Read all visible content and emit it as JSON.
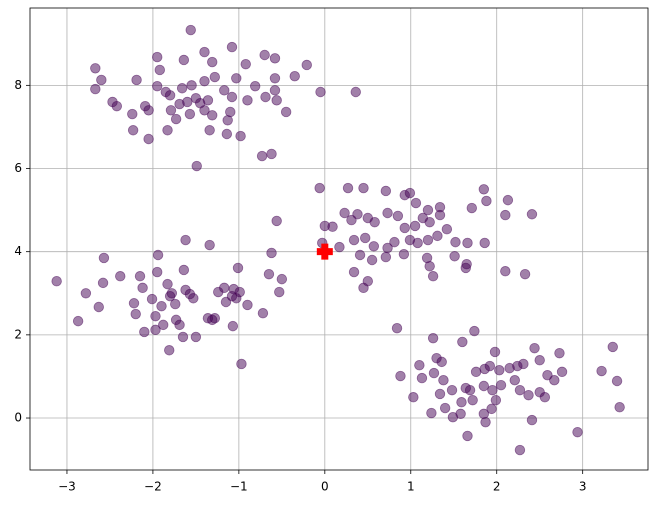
{
  "chart_data": {
    "type": "scatter",
    "xlim": [
      -3.43,
      3.76
    ],
    "ylim": [
      -1.25,
      9.86
    ],
    "xticks": [
      {
        "value": -3,
        "label": "−3"
      },
      {
        "value": -2,
        "label": "−2"
      },
      {
        "value": -1,
        "label": "−1"
      },
      0,
      1,
      2,
      3
    ],
    "yticks": [
      0,
      2,
      4,
      6,
      8
    ],
    "grid": true,
    "series": [
      {
        "color": "#440154",
        "opacity": 0.5,
        "marker": "circle",
        "x": [
          -1.56,
          -2.67,
          -1.95,
          -1.4,
          -1.08,
          -0.7,
          -0.58,
          -0.21,
          -0.35,
          -0.58,
          -0.92,
          -1.31,
          -1.64,
          -1.92,
          -2.19,
          -2.6,
          -2.67,
          -2.47,
          -2.42,
          -2.09,
          -2.05,
          -2.24,
          -1.95,
          -1.85,
          -1.8,
          -1.66,
          -1.55,
          -1.4,
          -1.28,
          -1.03,
          -0.81,
          -0.58,
          -0.69,
          -0.56,
          -0.45,
          -0.9,
          -1.08,
          -1.17,
          -1.36,
          -1.45,
          -1.5,
          -1.6,
          -1.69,
          -1.79,
          -1.83,
          -1.73,
          -1.57,
          -1.4,
          -1.31,
          -1.1,
          -1.13,
          -1.34,
          -1.14,
          -0.98,
          -2.23,
          -2.05,
          -0.73,
          -0.62,
          -1.49,
          -0.05,
          0.36,
          -0.06,
          0.27,
          0.45,
          0.71,
          0.93,
          0.99,
          1.06,
          1.2,
          1.34,
          1.85,
          1.88,
          2.13,
          2.1,
          2.41,
          1.71,
          0,
          0.09,
          0.23,
          0.31,
          0.38,
          0.5,
          0.58,
          0.73,
          0.85,
          0.93,
          1.05,
          1.14,
          1.22,
          1.34,
          1.42,
          1.31,
          1.2,
          1.08,
          0.99,
          0.81,
          0.73,
          0.57,
          0.47,
          0.34,
          0.17,
          -0.03,
          0.41,
          0.55,
          0.71,
          0.92,
          1.19,
          1.22,
          1.26,
          1.65,
          1.64,
          1.52,
          1.66,
          1.86,
          2.1,
          2.33,
          0.34,
          0.5,
          0.45,
          0.84,
          1.51,
          -3.12,
          -2.87,
          -2.78,
          -2.63,
          -2.57,
          -2.58,
          -2.38,
          -2.22,
          -2.2,
          -2.15,
          -2.12,
          -2.01,
          -2.1,
          -1.97,
          -1.97,
          -1.95,
          -1.94,
          -1.9,
          -1.88,
          -1.83,
          -1.8,
          -1.78,
          -1.74,
          -1.73,
          -1.69,
          -1.65,
          -1.81,
          -1.62,
          -1.57,
          -1.64,
          -1.62,
          -1.53,
          -1.5,
          -1.34,
          -1.36,
          -1.31,
          -1.24,
          -1.17,
          -1.15,
          -1.08,
          -1.06,
          -1.03,
          -0.99,
          -1.01,
          -0.9,
          -1.07,
          -0.72,
          -0.65,
          -0.62,
          -0.56,
          -0.53,
          -0.5,
          -0.97,
          -1.28,
          0.88,
          1.1,
          1.26,
          1.3,
          1.36,
          1.13,
          1.27,
          1.38,
          1.34,
          1.48,
          1.49,
          1.24,
          1.58,
          1.59,
          1.64,
          1.6,
          1.74,
          1.76,
          1.86,
          1.92,
          1.98,
          2.03,
          2.05,
          1.95,
          1.99,
          1.94,
          1.85,
          1.87,
          1.66,
          1.72,
          1.69,
          1.85,
          2.15,
          2.24,
          2.31,
          2.5,
          2.44,
          2.21,
          2.27,
          2.37,
          2.5,
          2.56,
          2.59,
          2.67,
          2.73,
          2.76,
          2.41,
          2.27,
          2.94,
          3.22,
          3.35,
          3.4,
          3.43,
          1.03,
          1.4
        ],
        "values": [
          9.33,
          8.41,
          8.68,
          8.8,
          8.92,
          8.73,
          8.65,
          8.49,
          8.22,
          8.17,
          8.51,
          8.56,
          8.61,
          8.37,
          8.13,
          8.13,
          7.91,
          7.6,
          7.5,
          7.5,
          7.4,
          7.31,
          7.98,
          7.84,
          7.76,
          7.93,
          8.0,
          8.1,
          8.2,
          8.17,
          7.98,
          7.88,
          7.72,
          7.64,
          7.36,
          7.64,
          7.72,
          7.88,
          7.64,
          7.57,
          7.69,
          7.6,
          7.55,
          7.4,
          6.92,
          7.19,
          7.31,
          7.4,
          7.28,
          7.36,
          7.16,
          6.92,
          6.83,
          6.78,
          6.92,
          6.71,
          6.3,
          6.35,
          6.06,
          7.84,
          7.84,
          5.53,
          5.53,
          5.53,
          5.46,
          5.36,
          5.41,
          5.17,
          5.0,
          5.07,
          5.5,
          5.22,
          5.24,
          4.88,
          4.9,
          5.05,
          4.62,
          4.6,
          4.93,
          4.76,
          4.9,
          4.81,
          4.71,
          4.93,
          4.86,
          4.57,
          4.62,
          4.81,
          4.71,
          4.88,
          4.54,
          4.38,
          4.28,
          4.21,
          4.28,
          4.23,
          4.09,
          4.13,
          4.33,
          4.28,
          4.11,
          4.21,
          3.92,
          3.8,
          3.87,
          3.94,
          3.85,
          3.65,
          3.41,
          3.7,
          3.61,
          4.23,
          4.21,
          4.21,
          3.53,
          3.46,
          3.51,
          3.29,
          3.13,
          2.16,
          3.89,
          3.29,
          2.33,
          3.0,
          2.67,
          3.85,
          3.25,
          3.41,
          2.76,
          2.5,
          3.41,
          3.13,
          2.86,
          2.07,
          2.12,
          2.45,
          3.51,
          3.92,
          2.69,
          2.24,
          3.22,
          2.93,
          3.0,
          2.74,
          2.36,
          2.24,
          1.95,
          1.63,
          3.08,
          2.98,
          3.56,
          4.28,
          2.88,
          1.95,
          4.16,
          2.4,
          2.36,
          3.03,
          3.13,
          2.79,
          2.93,
          3.1,
          2.88,
          3.03,
          3.61,
          2.72,
          2.21,
          2.52,
          3.46,
          3.97,
          4.74,
          3.03,
          3.34,
          1.3,
          2.4,
          1.01,
          1.27,
          1.92,
          1.44,
          1.35,
          0.96,
          1.08,
          0.91,
          0.58,
          0.67,
          0.02,
          0.12,
          0.1,
          0.38,
          0.72,
          1.83,
          2.09,
          1.11,
          1.18,
          1.25,
          1.59,
          1.15,
          0.79,
          0.67,
          0.43,
          0.22,
          0.1,
          -0.1,
          -0.43,
          0.43,
          0.67,
          0.77,
          1.2,
          1.25,
          1.3,
          1.39,
          1.68,
          0.91,
          0.67,
          0.55,
          0.62,
          0.5,
          1.03,
          0.91,
          1.56,
          1.11,
          -0.05,
          -0.77,
          -0.34,
          1.13,
          1.71,
          0.89,
          0.26,
          0.5,
          0.24
        ]
      },
      {
        "color": "#ff0000",
        "opacity": 1,
        "marker": "plus",
        "x": [
          0
        ],
        "values": [
          4
        ]
      }
    ]
  }
}
